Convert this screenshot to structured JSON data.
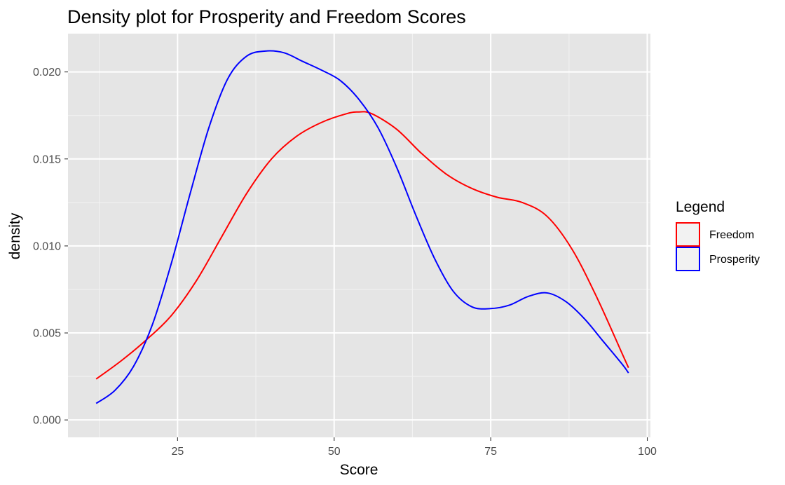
{
  "chart_data": {
    "type": "line",
    "title": "Density plot for Prosperity and Freedom Scores",
    "xlabel": "Score",
    "ylabel": "density",
    "xlim": [
      7.5,
      100.5
    ],
    "ylim": [
      -0.001,
      0.0222
    ],
    "x_ticks": [
      25,
      50,
      75,
      100
    ],
    "y_ticks": [
      0.0,
      0.005,
      0.01,
      0.015,
      0.02
    ],
    "x_tick_labels": [
      "25",
      "50",
      "75",
      "100"
    ],
    "y_tick_labels": [
      "0.000",
      "0.005",
      "0.010",
      "0.015",
      "0.020"
    ],
    "grid": true,
    "legend": {
      "title": "Legend",
      "position": "right",
      "entries": [
        "Freedom",
        "Prosperity"
      ]
    },
    "series": [
      {
        "name": "Freedom",
        "color": "#ff0000",
        "points": [
          [
            12,
            0.00235
          ],
          [
            16,
            0.0034
          ],
          [
            20,
            0.0046
          ],
          [
            24,
            0.006
          ],
          [
            28,
            0.008
          ],
          [
            32,
            0.0105
          ],
          [
            36,
            0.013
          ],
          [
            40,
            0.015
          ],
          [
            44,
            0.0163
          ],
          [
            48,
            0.0171
          ],
          [
            52,
            0.0176
          ],
          [
            54,
            0.0177
          ],
          [
            56,
            0.0176
          ],
          [
            60,
            0.0167
          ],
          [
            64,
            0.0153
          ],
          [
            68,
            0.0141
          ],
          [
            72,
            0.0133
          ],
          [
            76,
            0.0128
          ],
          [
            80,
            0.0125
          ],
          [
            84,
            0.0117
          ],
          [
            88,
            0.0098
          ],
          [
            92,
            0.007
          ],
          [
            96,
            0.0038
          ],
          [
            97,
            0.003
          ]
        ]
      },
      {
        "name": "Prosperity",
        "color": "#0000ff",
        "points": [
          [
            12,
            0.00095
          ],
          [
            15,
            0.0017
          ],
          [
            18,
            0.0031
          ],
          [
            21,
            0.0055
          ],
          [
            24,
            0.009
          ],
          [
            27,
            0.013
          ],
          [
            30,
            0.0168
          ],
          [
            33,
            0.0196
          ],
          [
            36,
            0.0209
          ],
          [
            39,
            0.0212
          ],
          [
            42,
            0.0211
          ],
          [
            45,
            0.0206
          ],
          [
            48,
            0.0201
          ],
          [
            51,
            0.0195
          ],
          [
            54,
            0.0184
          ],
          [
            57,
            0.0168
          ],
          [
            60,
            0.0145
          ],
          [
            63,
            0.0118
          ],
          [
            66,
            0.0093
          ],
          [
            69,
            0.0074
          ],
          [
            72,
            0.0065
          ],
          [
            75,
            0.0064
          ],
          [
            78,
            0.0066
          ],
          [
            81,
            0.0071
          ],
          [
            84,
            0.0073
          ],
          [
            87,
            0.0068
          ],
          [
            90,
            0.0058
          ],
          [
            93,
            0.0045
          ],
          [
            96,
            0.0032
          ],
          [
            97,
            0.0027
          ]
        ]
      }
    ]
  }
}
